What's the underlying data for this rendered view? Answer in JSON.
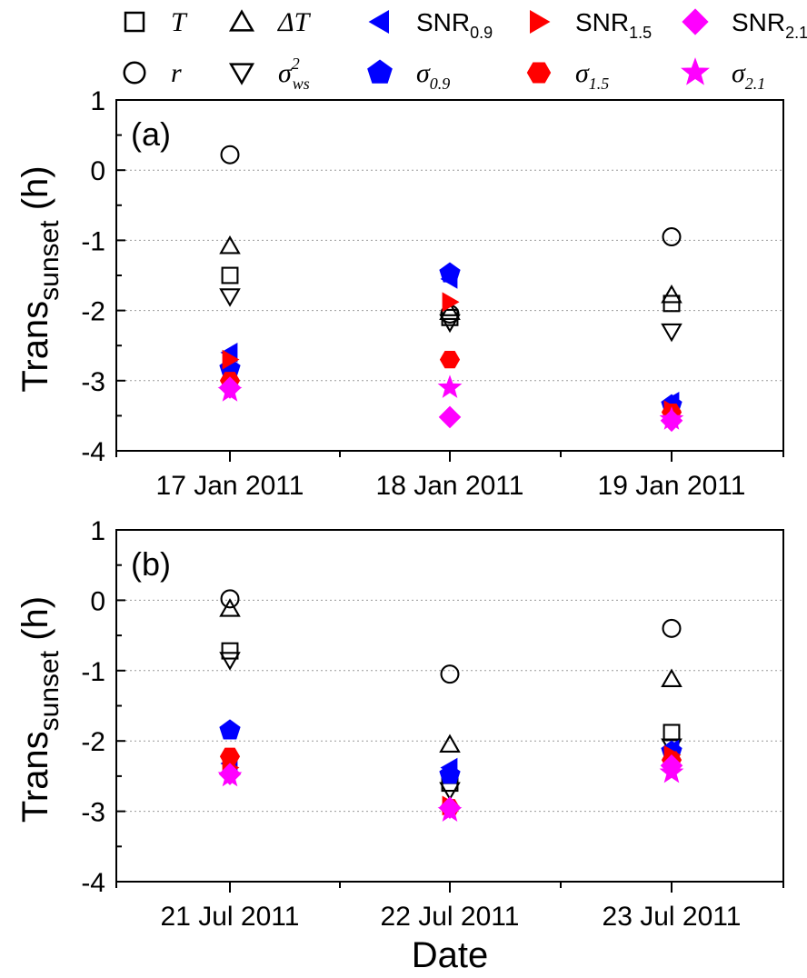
{
  "legend": [
    {
      "key": "T",
      "label": "T",
      "sub": "",
      "sup": "",
      "italic": true,
      "marker": "square",
      "fill": "none",
      "stroke": "#000000"
    },
    {
      "key": "dT",
      "label": "ΔT",
      "sub": "",
      "sup": "",
      "italic": true,
      "marker": "triangle",
      "fill": "none",
      "stroke": "#000000"
    },
    {
      "key": "snr09",
      "label": "SNR",
      "sub": "0.9",
      "sup": "",
      "italic": false,
      "marker": "left-tri",
      "fill": "#0000ff",
      "stroke": "#0000ff"
    },
    {
      "key": "snr15",
      "label": "SNR",
      "sub": "1.5",
      "sup": "",
      "italic": false,
      "marker": "right-tri",
      "fill": "#ff0000",
      "stroke": "#ff0000"
    },
    {
      "key": "snr21",
      "label": "SNR",
      "sub": "2.1",
      "sup": "",
      "italic": false,
      "marker": "diamond",
      "fill": "#ff00ff",
      "stroke": "#ff00ff"
    },
    {
      "key": "r",
      "label": "r",
      "sub": "",
      "sup": "",
      "italic": true,
      "marker": "circle",
      "fill": "none",
      "stroke": "#000000"
    },
    {
      "key": "sigws",
      "label": "σ",
      "sub": "ws",
      "sup": "2",
      "italic": true,
      "marker": "down-tri",
      "fill": "none",
      "stroke": "#000000"
    },
    {
      "key": "sig09",
      "label": "σ",
      "sub": "0.9",
      "sup": "",
      "italic": true,
      "marker": "pentagon",
      "fill": "#0000ff",
      "stroke": "#0000ff"
    },
    {
      "key": "sig15",
      "label": "σ",
      "sub": "1.5",
      "sup": "",
      "italic": true,
      "marker": "hexagon",
      "fill": "#ff0000",
      "stroke": "#ff0000"
    },
    {
      "key": "sig21",
      "label": "σ",
      "sub": "2.1",
      "sup": "",
      "italic": true,
      "marker": "star",
      "fill": "#ff00ff",
      "stroke": "#ff00ff"
    }
  ],
  "chart_data": [
    {
      "type": "scatter",
      "panel_label": "(a)",
      "ylabel": "Trans",
      "ylabel_sub": "sunset",
      "ylabel_unit": " (h)",
      "xlabel": "",
      "categories": [
        "17 Jan 2011",
        "18 Jan 2011",
        "19 Jan 2011"
      ],
      "ylim": [
        -4,
        1
      ],
      "yticks": [
        1,
        0,
        -1,
        -2,
        -3,
        -4
      ],
      "grid": "horizontal dotted",
      "series": [
        {
          "key": "T",
          "values": [
            -1.5,
            -2.1,
            -1.9
          ]
        },
        {
          "key": "dT",
          "values": [
            -1.08,
            -2.02,
            -1.78
          ]
        },
        {
          "key": "snr09",
          "values": [
            -2.6,
            -1.55,
            -3.3
          ]
        },
        {
          "key": "snr15",
          "values": [
            -2.7,
            -1.88,
            -3.42
          ]
        },
        {
          "key": "snr21",
          "values": [
            -3.1,
            -3.52,
            -3.57
          ]
        },
        {
          "key": "r",
          "values": [
            0.22,
            -2.05,
            -0.95
          ]
        },
        {
          "key": "sigws",
          "values": [
            -1.8,
            -2.17,
            -2.3
          ]
        },
        {
          "key": "sig09",
          "values": [
            -2.83,
            -1.47,
            -3.35
          ]
        },
        {
          "key": "sig15",
          "values": [
            -3.0,
            -2.7,
            -3.45
          ]
        },
        {
          "key": "sig21",
          "values": [
            -3.15,
            -3.1,
            -3.55
          ]
        }
      ]
    },
    {
      "type": "scatter",
      "panel_label": "(b)",
      "ylabel": "Trans",
      "ylabel_sub": "sunset",
      "ylabel_unit": " (h)",
      "xlabel": "Date",
      "categories": [
        "21 Jul 2011",
        "22 Jul 2011",
        "23 Jul 2011"
      ],
      "ylim": [
        -4,
        1
      ],
      "yticks": [
        1,
        0,
        -1,
        -2,
        -3,
        -4
      ],
      "grid": "horizontal dotted",
      "series": [
        {
          "key": "T",
          "values": [
            -0.72,
            -2.6,
            -1.88
          ]
        },
        {
          "key": "dT",
          "values": [
            -0.12,
            -2.05,
            -1.12
          ]
        },
        {
          "key": "snr09",
          "values": [
            -2.32,
            -2.38,
            -2.12
          ]
        },
        {
          "key": "snr15",
          "values": [
            -2.38,
            -2.92,
            -2.2
          ]
        },
        {
          "key": "snr21",
          "values": [
            -2.47,
            -2.95,
            -2.35
          ]
        },
        {
          "key": "r",
          "values": [
            0.02,
            -1.05,
            -0.4
          ]
        },
        {
          "key": "sigws",
          "values": [
            -0.85,
            -2.7,
            -2.08
          ]
        },
        {
          "key": "sig09",
          "values": [
            -1.85,
            -2.48,
            -2.15
          ]
        },
        {
          "key": "sig15",
          "values": [
            -2.22,
            -2.95,
            -2.27
          ]
        },
        {
          "key": "sig21",
          "values": [
            -2.5,
            -3.0,
            -2.45
          ]
        }
      ]
    }
  ]
}
